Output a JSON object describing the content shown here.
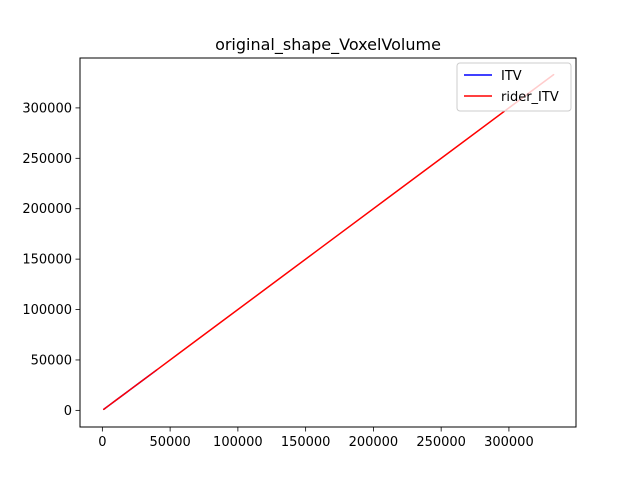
{
  "chart_data": {
    "type": "line",
    "title": "original_shape_VoxelVolume",
    "xlabel": "",
    "ylabel": "",
    "xlim": [
      -16500,
      349500
    ],
    "ylim": [
      -16500,
      349500
    ],
    "x_ticks": [
      0,
      50000,
      100000,
      150000,
      200000,
      250000,
      300000
    ],
    "x_tick_labels": [
      "0",
      "50000",
      "100000",
      "150000",
      "200000",
      "250000",
      "300000"
    ],
    "y_ticks": [
      0,
      50000,
      100000,
      150000,
      200000,
      250000,
      300000
    ],
    "y_tick_labels": [
      "0",
      "50000",
      "100000",
      "150000",
      "200000",
      "250000",
      "300000"
    ],
    "grid": false,
    "legend_position": "top-right",
    "series": [
      {
        "name": "ITV",
        "color": "#0000ff",
        "points": [
          [
            1100,
            1100
          ],
          [
            5000,
            5000
          ],
          [
            12000,
            12000
          ],
          [
            20000,
            20000
          ],
          [
            28000,
            28000
          ],
          [
            40000,
            40000
          ]
        ]
      },
      {
        "name": "rider_ITV",
        "color": "#ff0000",
        "points": [
          [
            1000,
            1000
          ],
          [
            5000,
            5000
          ],
          [
            10000,
            10000
          ],
          [
            20000,
            20000
          ],
          [
            40000,
            40000
          ],
          [
            57000,
            57000
          ],
          [
            87000,
            87000
          ],
          [
            120000,
            120000
          ],
          [
            158000,
            158000
          ],
          [
            210000,
            210000
          ],
          [
            260000,
            260000
          ],
          [
            300000,
            300000
          ],
          [
            333000,
            333000
          ]
        ]
      }
    ]
  }
}
